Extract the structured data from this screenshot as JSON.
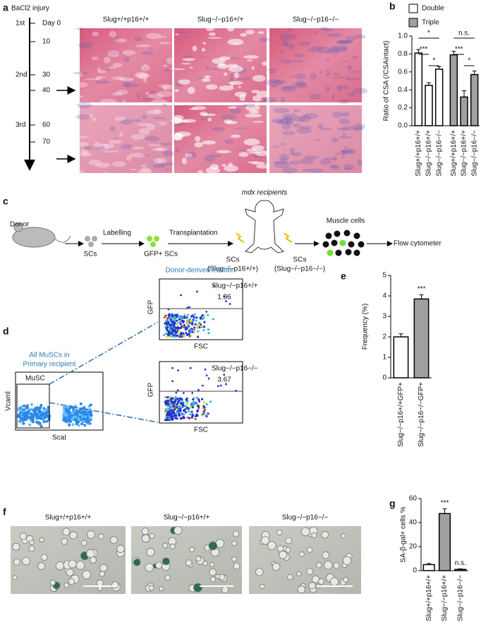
{
  "panel_labels": [
    "a",
    "b",
    "c",
    "d",
    "e",
    "f",
    "g"
  ],
  "panel_a": {
    "injury_label": "BaCl2 injury",
    "injuries": [
      "1st",
      "2nd",
      "3rd"
    ],
    "days": [
      "Day 0",
      "10",
      "30",
      "40",
      "60",
      "70"
    ],
    "columns": [
      "Slug+/+p16+/+",
      "Slug−/−p16+/+",
      "Slug−/−p16−/−"
    ]
  },
  "panel_c": {
    "donor": "Donor",
    "scs": "SCs",
    "labelling": "Labelling",
    "gfp_scs": "GFP+ SCs",
    "transplantation": "Transplantation",
    "recipients": "mdx recipients",
    "left_sc": "SCs",
    "left_genotype": "(Slug−/−p16+/+)",
    "right_sc": "SCs",
    "right_genotype": "(Slug−/−p16−/−)",
    "muscle_cells": "Muscle cells",
    "flow": "Flow cytometer"
  },
  "panel_d": {
    "all_muscs": "All MuSCs in",
    "primary": "Primary recipient",
    "gate": "MuSC",
    "y_label": "Vcaml",
    "x_label": "ScaI",
    "donor_fraction": "Donor-derived fraction",
    "plots": [
      {
        "genotype": "Slug−/−p16+/+",
        "percent": "1.96",
        "y_label": "GFP",
        "x_label": "FSC"
      },
      {
        "genotype": "Slug−/−p16−/−",
        "percent": "3.67",
        "y_label": "GFP",
        "x_label": "FSC"
      }
    ]
  },
  "panel_f": {
    "titles": [
      "Slug+/+p16+/+",
      "Slug−/−p16+/+",
      "Slug−/−p16−/−"
    ]
  },
  "chart_data": [
    {
      "type": "bar",
      "y_label": "Ratio of CSA (/CSAintact)",
      "categories": [
        "Slug+/+p16+/+",
        "Slug−/−p16+/+",
        "Slug−/−p16−/−"
      ],
      "series": [
        {
          "name": "Double",
          "color": "#ffffff",
          "values": [
            0.81,
            0.45,
            0.63
          ],
          "errors": [
            0.04,
            0.03,
            0.03
          ]
        },
        {
          "name": "Triple",
          "color": "#a0a0a0",
          "values": [
            0.79,
            0.32,
            0.57
          ],
          "errors": [
            0.04,
            0.07,
            0.04
          ]
        }
      ],
      "annotations": [
        "***",
        "*",
        "*",
        "n.s.",
        "***",
        "*"
      ],
      "ylim": [
        0,
        1.0
      ],
      "yticks": [
        {
          "value": 0,
          "label": "0.0"
        },
        {
          "value": 0.2,
          "label": "0.2"
        },
        {
          "value": 0.4,
          "label": "0.4"
        },
        {
          "value": 0.6,
          "label": "0.6"
        },
        {
          "value": 0.8,
          "label": "0.8"
        },
        {
          "value": 1.0,
          "label": "1.0"
        }
      ]
    },
    {
      "type": "bar",
      "y_label": "Frequency (%)",
      "categories": [
        "Slug−/−p16+/+GFP+",
        "Slug−/−p16−/−GFP+"
      ],
      "values": [
        2.0,
        3.85
      ],
      "errors": [
        0.15,
        0.2
      ],
      "colors": [
        "#ffffff",
        "#a0a0a0"
      ],
      "annotations": [
        "***"
      ],
      "ylim": [
        0,
        5
      ],
      "yticks": [
        0,
        1,
        2,
        3,
        4,
        5
      ]
    },
    {
      "type": "bar",
      "y_label": "SA-β-gal+ cells %",
      "categories": [
        "Slug+/+p16+/+",
        "Slug−/−p16+/+",
        "Slug−/−p16−/−"
      ],
      "values": [
        5,
        47.5,
        1
      ],
      "errors": [
        1,
        4,
        0.5
      ],
      "colors": [
        "#ffffff",
        "#a0a0a0",
        "#ffffff"
      ],
      "annotations": [
        "***",
        "n.s."
      ],
      "ylim": [
        0,
        60
      ],
      "yticks": [
        0,
        20,
        40,
        60
      ]
    }
  ]
}
